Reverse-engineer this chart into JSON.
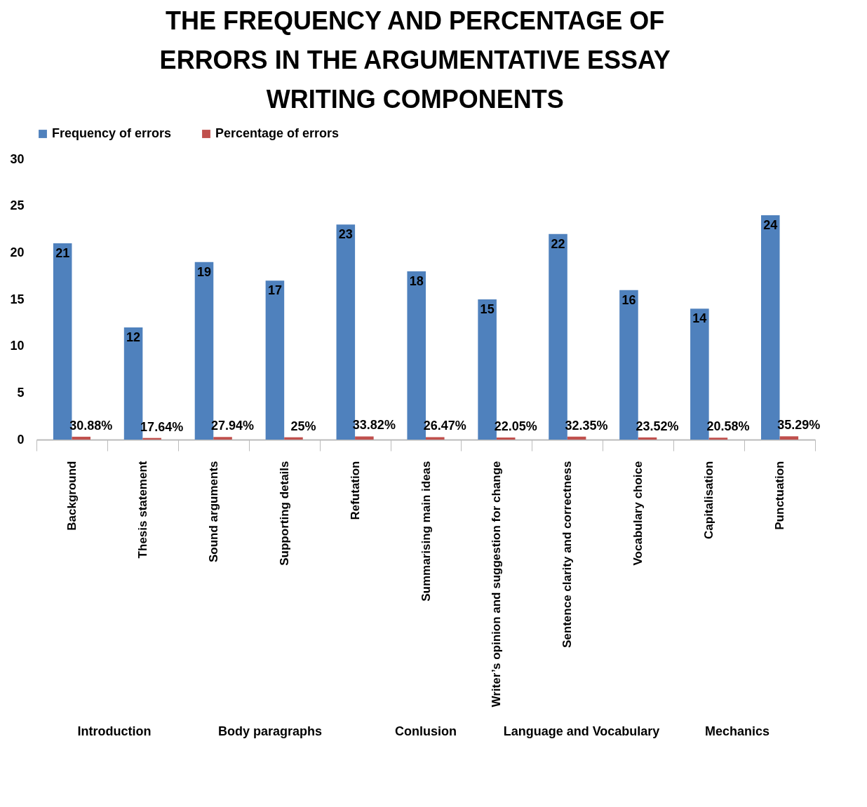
{
  "chart_data": {
    "type": "bar",
    "title": "THE FREQUENCY AND PERCENTAGE OF ERRORS IN THE ARGUMENTATIVE ESSAY WRITING COMPONENTS",
    "categories": [
      "Background",
      "Thesis statement",
      "Sound arguments",
      "Supporting details",
      "Refutation",
      "Summarising  main ideas",
      "Writer’s opinion and suggestion for change",
      "Sentence clarity and correctness",
      "Vocabulary choice",
      "Capitalisation",
      "Punctuation"
    ],
    "series": [
      {
        "name": "Frequency of errors",
        "color": "#4f81bd",
        "values": [
          21,
          12,
          19,
          17,
          23,
          18,
          15,
          22,
          16,
          14,
          24
        ],
        "value_labels": [
          "21",
          "12",
          "19",
          "17",
          "23",
          "18",
          "15",
          "22",
          "16",
          "14",
          "24"
        ]
      },
      {
        "name": "Percentage of errors",
        "color": "#c0504d",
        "values": [
          0.3088,
          0.1764,
          0.2794,
          0.25,
          0.3382,
          0.2647,
          0.2205,
          0.3235,
          0.2352,
          0.2058,
          0.3529
        ],
        "value_labels": [
          "30.88%",
          "17.64%",
          "27.94%",
          "25%",
          "33.82%",
          "26.47%",
          "22.05%",
          "32.35%",
          "23.52%",
          "20.58%",
          "35.29%"
        ]
      }
    ],
    "ylim": [
      0,
      30
    ],
    "yticks": [
      0,
      5,
      10,
      15,
      20,
      25,
      30
    ],
    "grid": false,
    "legend": "top",
    "annotations": [
      "Introduction",
      "Body paragraphs",
      "Conlusion",
      "Language and Vocabulary",
      "Mechanics"
    ]
  }
}
